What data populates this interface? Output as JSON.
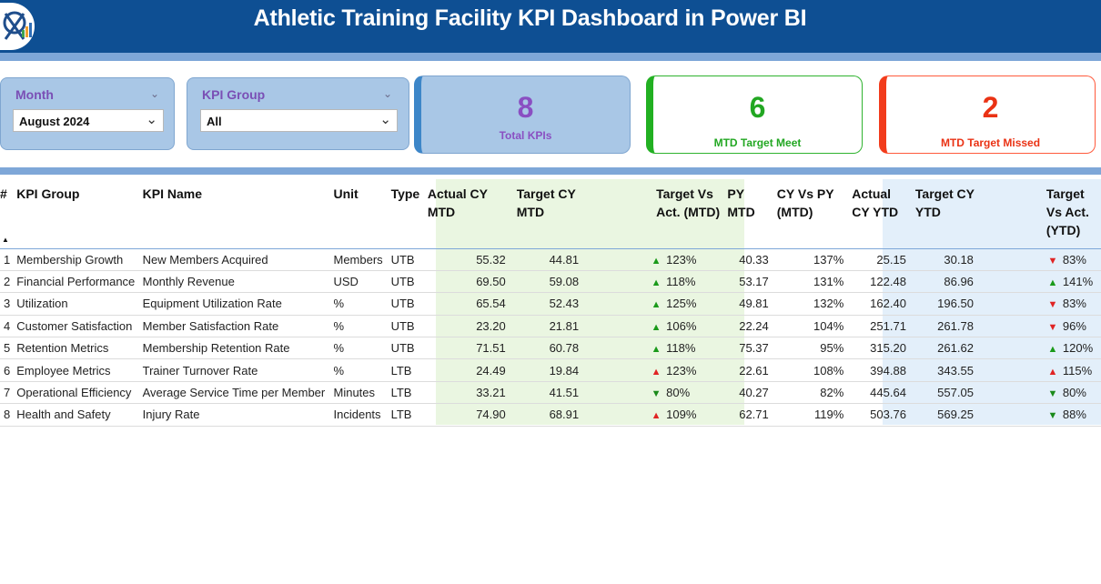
{
  "header": {
    "title": "Athletic Training Facility KPI Dashboard in Power BI"
  },
  "slicers": {
    "month": {
      "label": "Month",
      "value": "August 2024"
    },
    "kpi_group": {
      "label": "KPI Group",
      "value": "All"
    }
  },
  "cards": {
    "total": {
      "value": "8",
      "label": "Total KPIs"
    },
    "meet": {
      "value": "6",
      "label": "MTD Target Meet"
    },
    "missed": {
      "value": "2",
      "label": "MTD Target Missed"
    }
  },
  "colors": {
    "header": "#0e4f93",
    "stripe": "#7ea7d8",
    "meet": "#22b022",
    "missed": "#f23c1c",
    "total_text": "#8a4fc2"
  },
  "table": {
    "headers": {
      "num": "#",
      "group": "KPI Group",
      "name": "KPI Name",
      "unit": "Unit",
      "type": "Type",
      "actual_mtd": "Actual CY MTD",
      "target_mtd": "Target CY MTD",
      "tva_mtd": "Target Vs Act. (MTD)",
      "py_mtd": "PY MTD",
      "cyvpy_mtd": "CY Vs PY (MTD)",
      "actual_ytd": "Actual CY YTD",
      "target_ytd": "Target CY YTD",
      "tva_ytd": "Target Vs Act. (YTD)"
    },
    "rows": [
      {
        "num": "1",
        "group": "Membership Growth",
        "name": "New Members Acquired",
        "unit": "Members",
        "type": "UTB",
        "actual_mtd": "55.32",
        "target_mtd": "44.81",
        "mtd_dir": "up-green",
        "tva_mtd": "123%",
        "py_mtd": "40.33",
        "cyvpy": "137%",
        "actual_ytd": "25.15",
        "target_ytd": "30.18",
        "ytd_dir": "down-red",
        "tva_ytd": "83%"
      },
      {
        "num": "2",
        "group": "Financial Performance",
        "name": "Monthly Revenue",
        "unit": "USD",
        "type": "UTB",
        "actual_mtd": "69.50",
        "target_mtd": "59.08",
        "mtd_dir": "up-green",
        "tva_mtd": "118%",
        "py_mtd": "53.17",
        "cyvpy": "131%",
        "actual_ytd": "122.48",
        "target_ytd": "86.96",
        "ytd_dir": "up-green",
        "tva_ytd": "141%"
      },
      {
        "num": "3",
        "group": "Utilization",
        "name": "Equipment Utilization Rate",
        "unit": "%",
        "type": "UTB",
        "actual_mtd": "65.54",
        "target_mtd": "52.43",
        "mtd_dir": "up-green",
        "tva_mtd": "125%",
        "py_mtd": "49.81",
        "cyvpy": "132%",
        "actual_ytd": "162.40",
        "target_ytd": "196.50",
        "ytd_dir": "down-red",
        "tva_ytd": "83%"
      },
      {
        "num": "4",
        "group": "Customer Satisfaction",
        "name": "Member Satisfaction Rate",
        "unit": "%",
        "type": "UTB",
        "actual_mtd": "23.20",
        "target_mtd": "21.81",
        "mtd_dir": "up-green",
        "tva_mtd": "106%",
        "py_mtd": "22.24",
        "cyvpy": "104%",
        "actual_ytd": "251.71",
        "target_ytd": "261.78",
        "ytd_dir": "down-red",
        "tva_ytd": "96%"
      },
      {
        "num": "5",
        "group": "Retention Metrics",
        "name": "Membership Retention Rate",
        "unit": "%",
        "type": "UTB",
        "actual_mtd": "71.51",
        "target_mtd": "60.78",
        "mtd_dir": "up-green",
        "tva_mtd": "118%",
        "py_mtd": "75.37",
        "cyvpy": "95%",
        "actual_ytd": "315.20",
        "target_ytd": "261.62",
        "ytd_dir": "up-green",
        "tva_ytd": "120%"
      },
      {
        "num": "6",
        "group": "Employee Metrics",
        "name": "Trainer Turnover Rate",
        "unit": "%",
        "type": "LTB",
        "actual_mtd": "24.49",
        "target_mtd": "19.84",
        "mtd_dir": "up-red",
        "tva_mtd": "123%",
        "py_mtd": "22.61",
        "cyvpy": "108%",
        "actual_ytd": "394.88",
        "target_ytd": "343.55",
        "ytd_dir": "up-red",
        "tva_ytd": "115%"
      },
      {
        "num": "7",
        "group": "Operational Efficiency",
        "name": "Average Service Time per Member",
        "unit": "Minutes",
        "type": "LTB",
        "actual_mtd": "33.21",
        "target_mtd": "41.51",
        "mtd_dir": "down-green",
        "tva_mtd": "80%",
        "py_mtd": "40.27",
        "cyvpy": "82%",
        "actual_ytd": "445.64",
        "target_ytd": "557.05",
        "ytd_dir": "down-green",
        "tva_ytd": "80%"
      },
      {
        "num": "8",
        "group": "Health and Safety",
        "name": "Injury Rate",
        "unit": "Incidents",
        "type": "LTB",
        "actual_mtd": "74.90",
        "target_mtd": "68.91",
        "mtd_dir": "up-red",
        "tva_mtd": "109%",
        "py_mtd": "62.71",
        "cyvpy": "119%",
        "actual_ytd": "503.76",
        "target_ytd": "569.25",
        "ytd_dir": "down-green",
        "tva_ytd": "88%"
      }
    ]
  }
}
